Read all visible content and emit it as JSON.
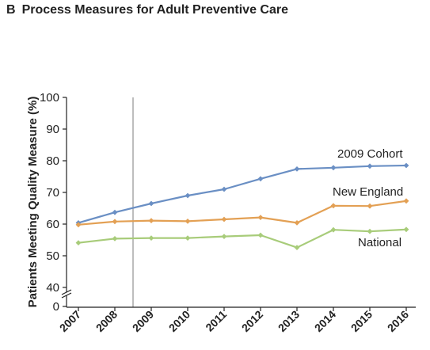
{
  "panel": {
    "letter": "B",
    "title": "Process Measures for Adult Preventive Care"
  },
  "chart_data": {
    "type": "line",
    "title": "Process Measures for Adult Preventive Care",
    "xlabel": "",
    "ylabel": "Patients Meeting Quality Measure (%)",
    "x": [
      "2007",
      "2008",
      "2009",
      "2010",
      "2011",
      "2012",
      "2013",
      "2014",
      "2015",
      "2016"
    ],
    "ylim": [
      0,
      100
    ],
    "axis_break": [
      0,
      40
    ],
    "yticks": [
      "0",
      "40",
      "50",
      "60",
      "70",
      "80",
      "90",
      "100"
    ],
    "reference_line_between": [
      "2008",
      "2009"
    ],
    "grid": false,
    "series": [
      {
        "name": "2009 Cohort",
        "color": "#6a8fc4",
        "values": [
          60.4,
          63.7,
          66.5,
          69.0,
          71.0,
          74.3,
          77.4,
          77.8,
          78.3,
          78.5
        ]
      },
      {
        "name": "New England",
        "color": "#e3a054",
        "values": [
          59.8,
          60.8,
          61.1,
          60.9,
          61.5,
          62.1,
          60.4,
          65.8,
          65.7,
          67.3
        ]
      },
      {
        "name": "National",
        "color": "#a8cc7a",
        "values": [
          54.1,
          55.4,
          55.6,
          55.6,
          56.1,
          56.5,
          52.6,
          58.2,
          57.7,
          58.3
        ]
      }
    ]
  }
}
